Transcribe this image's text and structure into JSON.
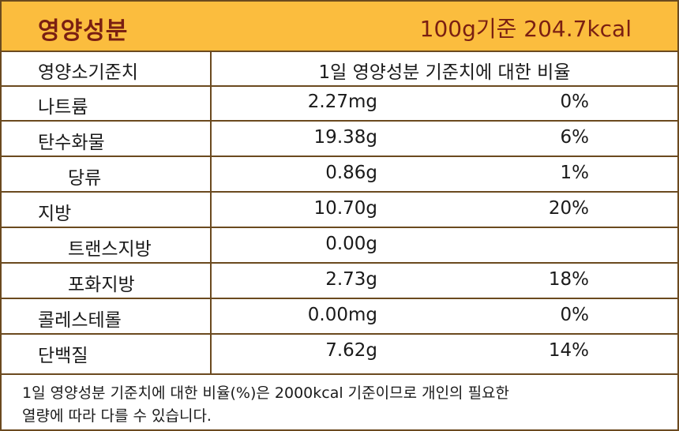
{
  "header": {
    "title": "영양성분",
    "basis": "100g기준 204.7kcal"
  },
  "table": {
    "column_header_label": "영양소기준치",
    "column_header_ratio": "1일 영양성분 기준치에 대한 비율",
    "rows": [
      {
        "name": "나트륨",
        "amount": "2.27mg",
        "percent": "0%"
      },
      {
        "name": "탄수화물",
        "amount": "19.38g",
        "percent": "6%"
      },
      {
        "name": "당류",
        "amount": "0.86g",
        "percent": "1%"
      },
      {
        "name": "지방",
        "amount": "10.70g",
        "percent": "20%"
      },
      {
        "name": "트랜스지방",
        "amount": "0.00g",
        "percent": ""
      },
      {
        "name": "포화지방",
        "amount": "2.73g",
        "percent": "18%"
      },
      {
        "name": "콜레스테롤",
        "amount": "0.00mg",
        "percent": "0%"
      },
      {
        "name": "단백질",
        "amount": "7.62g",
        "percent": "14%"
      }
    ]
  },
  "footnote": {
    "line1": "1일 영양성분 기준치에 대한 비율(%)은 2000kcal 기준이므로 개인의 필요한",
    "line2": "열량에 따라 다를 수 있습니다."
  }
}
